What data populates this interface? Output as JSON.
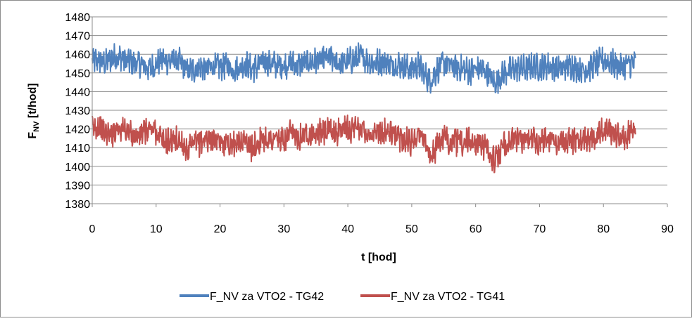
{
  "chart_data": {
    "type": "line",
    "title": "",
    "xlabel": "t [hod]",
    "ylabel": {
      "main": "F",
      "sub": "NV",
      "rest": " [t/hod]"
    },
    "xlim": [
      0,
      90
    ],
    "ylim": [
      1380,
      1480
    ],
    "x_ticks": [
      "0",
      "10",
      "20",
      "30",
      "40",
      "50",
      "60",
      "70",
      "80",
      "90"
    ],
    "y_ticks": [
      "1380",
      "1390",
      "1400",
      "1410",
      "1420",
      "1430",
      "1440",
      "1450",
      "1460",
      "1470",
      "1480"
    ],
    "grid": "horizontal",
    "legend_position": "bottom",
    "series": [
      {
        "name": "F_NV za VTO2 - TG42",
        "color": "#4f81bd",
        "x": [
          0,
          1,
          2,
          3,
          4,
          5,
          6,
          7,
          8,
          9,
          10,
          11,
          12,
          13,
          14,
          15,
          16,
          17,
          18,
          19,
          20,
          21,
          22,
          23,
          24,
          25,
          26,
          27,
          28,
          29,
          30,
          31,
          32,
          33,
          34,
          35,
          36,
          37,
          38,
          39,
          40,
          41,
          42,
          43,
          44,
          45,
          46,
          47,
          48,
          49,
          50,
          51,
          52,
          53,
          54,
          55,
          56,
          57,
          58,
          59,
          60,
          61,
          62,
          63,
          64,
          65,
          66,
          67,
          68,
          69,
          70,
          71,
          72,
          73,
          74,
          75,
          76,
          77,
          78,
          79,
          80,
          81,
          82,
          83,
          84,
          85
        ],
        "y": [
          1456,
          1457,
          1455,
          1458,
          1459,
          1457,
          1456,
          1455,
          1454,
          1452,
          1455,
          1457,
          1456,
          1457,
          1455,
          1451,
          1452,
          1453,
          1452,
          1454,
          1453,
          1454,
          1452,
          1453,
          1455,
          1452,
          1454,
          1456,
          1455,
          1454,
          1454,
          1455,
          1454,
          1455,
          1456,
          1456,
          1457,
          1458,
          1456,
          1455,
          1456,
          1457,
          1459,
          1457,
          1455,
          1456,
          1456,
          1454,
          1455,
          1453,
          1452,
          1454,
          1449,
          1446,
          1452,
          1455,
          1454,
          1453,
          1452,
          1451,
          1452,
          1452,
          1449,
          1444,
          1449,
          1451,
          1452,
          1453,
          1452,
          1454,
          1453,
          1454,
          1453,
          1452,
          1453,
          1454,
          1452,
          1452,
          1453,
          1455,
          1457,
          1456,
          1454,
          1453,
          1455,
          1455
        ],
        "band": 6
      },
      {
        "name": "F_NV za VTO2 - TG41",
        "color": "#c0504d",
        "x": [
          0,
          1,
          2,
          3,
          4,
          5,
          6,
          7,
          8,
          9,
          10,
          11,
          12,
          13,
          14,
          15,
          16,
          17,
          18,
          19,
          20,
          21,
          22,
          23,
          24,
          25,
          26,
          27,
          28,
          29,
          30,
          31,
          32,
          33,
          34,
          35,
          36,
          37,
          38,
          39,
          40,
          41,
          42,
          43,
          44,
          45,
          46,
          47,
          48,
          49,
          50,
          51,
          52,
          53,
          54,
          55,
          56,
          57,
          58,
          59,
          60,
          61,
          62,
          63,
          64,
          65,
          66,
          67,
          68,
          69,
          70,
          71,
          72,
          73,
          74,
          75,
          76,
          77,
          78,
          79,
          80,
          81,
          82,
          83,
          84,
          85
        ],
        "y": [
          1420,
          1422,
          1418,
          1417,
          1421,
          1420,
          1417,
          1416,
          1418,
          1420,
          1419,
          1413,
          1413,
          1414,
          1413,
          1408,
          1412,
          1413,
          1415,
          1414,
          1412,
          1413,
          1412,
          1413,
          1414,
          1409,
          1413,
          1415,
          1414,
          1415,
          1413,
          1417,
          1416,
          1417,
          1418,
          1417,
          1418,
          1419,
          1418,
          1420,
          1421,
          1419,
          1421,
          1418,
          1417,
          1418,
          1419,
          1417,
          1416,
          1414,
          1413,
          1418,
          1414,
          1405,
          1412,
          1415,
          1414,
          1413,
          1413,
          1414,
          1413,
          1412,
          1409,
          1402,
          1409,
          1413,
          1414,
          1415,
          1413,
          1415,
          1413,
          1416,
          1414,
          1413,
          1413,
          1414,
          1413,
          1415,
          1416,
          1417,
          1421,
          1419,
          1417,
          1415,
          1418,
          1418
        ],
        "band": 6
      }
    ]
  }
}
